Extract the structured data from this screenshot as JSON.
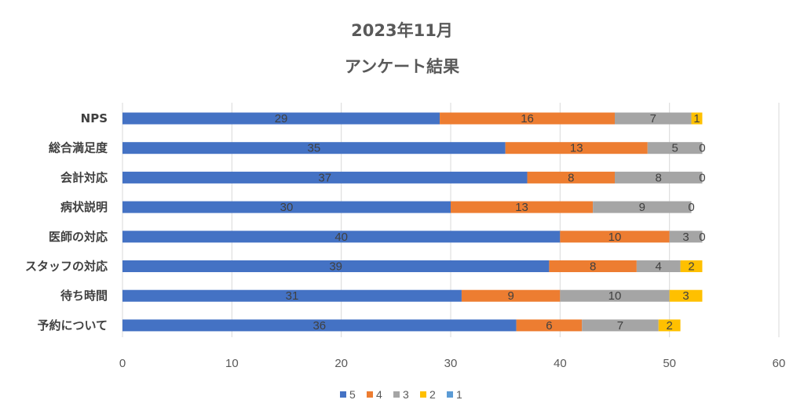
{
  "chart_data": {
    "type": "bar",
    "orientation": "horizontal",
    "stacked": true,
    "title_line1": "2023年11月",
    "title_line2": "アンケート結果",
    "categories": [
      "NPS",
      "総合満足度",
      "会計対応",
      "病状説明",
      "医師の対応",
      "スタッフの対応",
      "待ち時間",
      "予約について"
    ],
    "series": [
      {
        "name": "5",
        "color": "#4472C4",
        "values": [
          29,
          35,
          37,
          30,
          40,
          39,
          31,
          36
        ]
      },
      {
        "name": "4",
        "color": "#ED7D31",
        "values": [
          16,
          13,
          8,
          13,
          10,
          8,
          9,
          6
        ]
      },
      {
        "name": "3",
        "color": "#A5A5A5",
        "values": [
          7,
          5,
          8,
          9,
          3,
          4,
          10,
          7
        ]
      },
      {
        "name": "2",
        "color": "#FFC000",
        "values": [
          1,
          0,
          0,
          0,
          0,
          2,
          3,
          2
        ]
      },
      {
        "name": "1",
        "color": "#5B9BD5",
        "values": [
          0,
          0,
          0,
          0,
          0,
          0,
          0,
          0
        ]
      }
    ],
    "xlim": [
      0,
      60
    ],
    "xticks": [
      0,
      10,
      20,
      30,
      40,
      50,
      60
    ],
    "grid": true,
    "legend_position": "bottom"
  }
}
